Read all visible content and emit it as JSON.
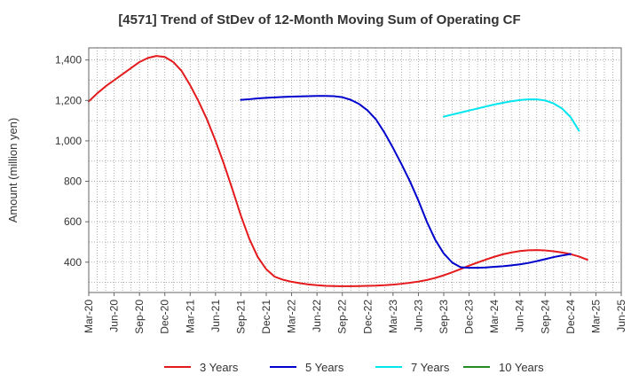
{
  "chart_data": {
    "type": "line",
    "title": "[4571]  Trend of StDev of 12-Month Moving Sum of Operating CF",
    "ylabel": "Amount (million yen)",
    "xlabel": "",
    "ylim": [
      250,
      1460
    ],
    "yticks": [
      400,
      600,
      800,
      1000,
      1200,
      1400
    ],
    "ytick_labels": [
      "400",
      "600",
      "800",
      "1,000",
      "1,200",
      "1,400"
    ],
    "x_labels": [
      "Mar-20",
      "Jun-20",
      "Sep-20",
      "Dec-20",
      "Mar-21",
      "Jun-21",
      "Sep-21",
      "Dec-21",
      "Mar-22",
      "Jun-22",
      "Sep-22",
      "Dec-22",
      "Mar-23",
      "Jun-23",
      "Sep-23",
      "Dec-23",
      "Mar-24",
      "Jun-24",
      "Sep-24",
      "Dec-24",
      "Mar-25",
      "Jun-25"
    ],
    "grid": true,
    "legend_position": "bottom",
    "series": [
      {
        "name": "3 Years",
        "color": "#e41a1c",
        "values": [
          [
            0,
            1195
          ],
          [
            1,
            1235
          ],
          [
            2,
            1270
          ],
          [
            3,
            1300
          ],
          [
            4,
            1330
          ],
          [
            5,
            1360
          ],
          [
            6,
            1390
          ],
          [
            7,
            1410
          ],
          [
            8,
            1420
          ],
          [
            9,
            1415
          ],
          [
            10,
            1390
          ],
          [
            11,
            1345
          ],
          [
            12,
            1275
          ],
          [
            13,
            1195
          ],
          [
            14,
            1105
          ],
          [
            15,
            1000
          ],
          [
            16,
            885
          ],
          [
            17,
            760
          ],
          [
            18,
            630
          ],
          [
            19,
            515
          ],
          [
            20,
            425
          ],
          [
            21,
            365
          ],
          [
            22,
            328
          ],
          [
            23,
            313
          ],
          [
            24,
            303
          ],
          [
            25,
            296
          ],
          [
            26,
            290
          ],
          [
            27,
            286
          ],
          [
            28,
            283
          ],
          [
            29,
            282
          ],
          [
            30,
            281
          ],
          [
            31,
            281
          ],
          [
            32,
            282
          ],
          [
            33,
            283
          ],
          [
            34,
            284
          ],
          [
            35,
            286
          ],
          [
            36,
            289
          ],
          [
            37,
            293
          ],
          [
            38,
            298
          ],
          [
            39,
            304
          ],
          [
            40,
            312
          ],
          [
            41,
            322
          ],
          [
            42,
            335
          ],
          [
            43,
            350
          ],
          [
            44,
            366
          ],
          [
            45,
            383
          ],
          [
            46,
            398
          ],
          [
            47,
            413
          ],
          [
            48,
            427
          ],
          [
            49,
            439
          ],
          [
            50,
            448
          ],
          [
            51,
            455
          ],
          [
            52,
            459
          ],
          [
            53,
            460
          ],
          [
            54,
            458
          ],
          [
            55,
            454
          ],
          [
            56,
            448
          ],
          [
            57,
            440
          ],
          [
            58,
            428
          ],
          [
            59,
            412
          ]
        ]
      },
      {
        "name": "5 Years",
        "color": "#0000cc",
        "values": [
          [
            18,
            1203
          ],
          [
            19,
            1206
          ],
          [
            20,
            1210
          ],
          [
            21,
            1213
          ],
          [
            22,
            1215
          ],
          [
            23,
            1217
          ],
          [
            24,
            1219
          ],
          [
            25,
            1220
          ],
          [
            26,
            1221
          ],
          [
            27,
            1222
          ],
          [
            28,
            1222
          ],
          [
            29,
            1221
          ],
          [
            30,
            1216
          ],
          [
            31,
            1203
          ],
          [
            32,
            1182
          ],
          [
            33,
            1150
          ],
          [
            34,
            1105
          ],
          [
            35,
            1040
          ],
          [
            36,
            965
          ],
          [
            37,
            885
          ],
          [
            38,
            800
          ],
          [
            39,
            705
          ],
          [
            40,
            600
          ],
          [
            41,
            510
          ],
          [
            42,
            443
          ],
          [
            43,
            398
          ],
          [
            44,
            375
          ],
          [
            45,
            372
          ],
          [
            46,
            372
          ],
          [
            47,
            374
          ],
          [
            48,
            377
          ],
          [
            49,
            380
          ],
          [
            50,
            384
          ],
          [
            51,
            389
          ],
          [
            52,
            396
          ],
          [
            53,
            405
          ],
          [
            54,
            415
          ],
          [
            55,
            425
          ],
          [
            56,
            433
          ],
          [
            57,
            440
          ]
        ]
      },
      {
        "name": "7 Years",
        "color": "#00e5ee",
        "values": [
          [
            42,
            1120
          ],
          [
            43,
            1130
          ],
          [
            44,
            1140
          ],
          [
            45,
            1150
          ],
          [
            46,
            1160
          ],
          [
            47,
            1170
          ],
          [
            48,
            1180
          ],
          [
            49,
            1188
          ],
          [
            50,
            1196
          ],
          [
            51,
            1202
          ],
          [
            52,
            1205
          ],
          [
            53,
            1205
          ],
          [
            54,
            1200
          ],
          [
            55,
            1185
          ],
          [
            56,
            1160
          ],
          [
            57,
            1118
          ],
          [
            58,
            1050
          ]
        ]
      },
      {
        "name": "10 Years",
        "color": "#228b22",
        "values": []
      }
    ]
  }
}
